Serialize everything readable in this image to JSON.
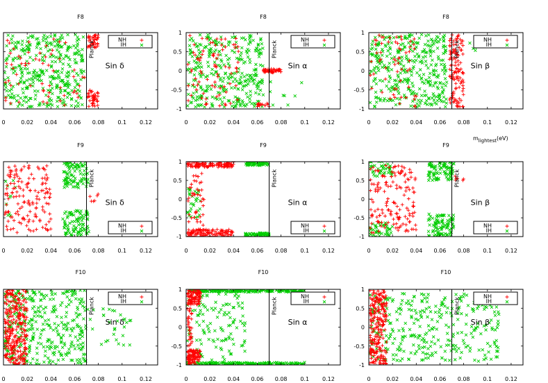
{
  "chart_data": [
    {
      "type": "scatter",
      "title": "F8",
      "annotation": "Sin δ",
      "ref_line": {
        "x": 0.07,
        "label": "Planck"
      },
      "xlim": [
        0,
        0.13
      ],
      "ylim": [
        -1,
        1
      ],
      "xticks": [
        "0",
        "0.02",
        "0.04",
        "0.06",
        "0.08",
        "0.1",
        "0.12"
      ],
      "yticks": [],
      "xlabel": "",
      "ylabel": "",
      "series": [
        {
          "name": "NH",
          "marker": "+",
          "color": "#ff0000"
        },
        {
          "name": "IH",
          "marker": "x",
          "color": "#00cc00"
        }
      ],
      "legend": "top-right",
      "nh_clusters": [
        [
          0.001,
          0.07,
          -0.9,
          0.95,
          60
        ],
        [
          0.071,
          0.08,
          0.6,
          0.95,
          40
        ],
        [
          0.071,
          0.08,
          -0.95,
          -0.5,
          40
        ]
      ],
      "ih_clusters": [
        [
          0.001,
          0.068,
          -0.95,
          0.95,
          360
        ]
      ]
    },
    {
      "type": "scatter",
      "title": "F8",
      "annotation": "Sin α",
      "ref_line": {
        "x": 0.07,
        "label": "Planck"
      },
      "xlim": [
        0,
        0.13
      ],
      "ylim": [
        -1,
        1
      ],
      "xticks": [
        "0",
        "0.02",
        "0.04",
        "0.06",
        "0.08",
        "0.1",
        "0.12"
      ],
      "yticks": [
        "1",
        "0.5",
        "0",
        "-0.5",
        "-1"
      ],
      "xlabel": "",
      "ylabel": "",
      "series": [
        {
          "name": "NH",
          "marker": "+",
          "color": "#ff0000"
        },
        {
          "name": "IH",
          "marker": "x",
          "color": "#00cc00"
        }
      ],
      "legend": "top-right",
      "nh_clusters": [
        [
          0.001,
          0.045,
          -0.95,
          0.95,
          80
        ],
        [
          0.065,
          0.08,
          -0.05,
          0.05,
          50
        ],
        [
          0.06,
          0.07,
          -0.95,
          -0.85,
          15
        ]
      ],
      "ih_clusters": [
        [
          0.001,
          0.065,
          -0.95,
          0.95,
          330
        ],
        [
          0.07,
          0.1,
          -0.9,
          -0.2,
          8
        ]
      ]
    },
    {
      "type": "scatter",
      "title": "F8",
      "annotation": "Sin β",
      "ref_line": {
        "x": 0.07,
        "label": "Planck"
      },
      "xlim": [
        0,
        0.13
      ],
      "ylim": [
        -1,
        1
      ],
      "xticks": [
        "0",
        "0.02",
        "0.04",
        "0.06",
        "0.08",
        "0.1",
        "0.12"
      ],
      "yticks": [
        "1",
        "0.5",
        "0",
        "-0.5",
        "-1"
      ],
      "xlabel": "m_lightest(eV)",
      "ylabel": "",
      "series": [
        {
          "name": "NH",
          "marker": "+",
          "color": "#ff0000"
        },
        {
          "name": "IH",
          "marker": "x",
          "color": "#00cc00"
        }
      ],
      "legend": "top-right",
      "nh_clusters": [
        [
          0.001,
          0.04,
          -0.95,
          0.95,
          60
        ],
        [
          0.068,
          0.08,
          -0.95,
          0.95,
          120
        ]
      ],
      "ih_clusters": [
        [
          0.001,
          0.066,
          -0.95,
          0.95,
          360
        ],
        [
          0.085,
          0.09,
          0.5,
          0.8,
          4
        ]
      ]
    },
    {
      "type": "scatter",
      "title": "F9",
      "annotation": "Sin δ",
      "ref_line": {
        "x": 0.07,
        "label": "Planck"
      },
      "xlim": [
        0,
        0.13
      ],
      "ylim": [
        -1,
        1
      ],
      "xticks": [
        "0",
        "0.02",
        "0.04",
        "0.06",
        "0.08",
        "0.1",
        "0.12"
      ],
      "yticks": [],
      "xlabel": "",
      "ylabel": "",
      "series": [
        {
          "name": "NH",
          "marker": "+",
          "color": "#ff0000"
        },
        {
          "name": "IH",
          "marker": "x",
          "color": "#00cc00"
        }
      ],
      "legend": "bottom-right",
      "nh_clusters": [
        [
          0.001,
          0.04,
          -0.9,
          0.9,
          150
        ],
        [
          0.07,
          0.08,
          -0.1,
          0.15,
          6
        ]
      ],
      "ih_clusters": [
        [
          0.05,
          0.072,
          0.3,
          1.0,
          90
        ],
        [
          0.05,
          0.072,
          -1.0,
          -0.3,
          90
        ],
        [
          0.001,
          0.01,
          -0.5,
          0.5,
          10
        ]
      ]
    },
    {
      "type": "scatter",
      "title": "F9",
      "annotation": "Sin α",
      "ref_line": {
        "x": 0.07,
        "label": "Planck"
      },
      "xlim": [
        0,
        0.13
      ],
      "ylim": [
        -1,
        1
      ],
      "xticks": [
        "0",
        "0.02",
        "0.04",
        "0.06",
        "0.08",
        "0.1",
        "0.12"
      ],
      "yticks": [
        "1",
        "0.5",
        "0",
        "-0.5",
        "-1"
      ],
      "xlabel": "",
      "ylabel": "",
      "series": [
        {
          "name": "NH",
          "marker": "+",
          "color": "#ff0000"
        },
        {
          "name": "IH",
          "marker": "x",
          "color": "#00cc00"
        }
      ],
      "legend": "bottom-right",
      "nh_clusters": [
        [
          0.001,
          0.04,
          0.85,
          1.0,
          110
        ],
        [
          0.001,
          0.04,
          -1.0,
          -0.8,
          110
        ],
        [
          0.001,
          0.015,
          -0.7,
          0.7,
          40
        ]
      ],
      "ih_clusters": [
        [
          0.05,
          0.07,
          0.9,
          1.0,
          70
        ],
        [
          0.05,
          0.07,
          -1.0,
          -0.9,
          70
        ],
        [
          0.001,
          0.012,
          -0.5,
          0.3,
          30
        ]
      ]
    },
    {
      "type": "scatter",
      "title": "F9",
      "annotation": "Sin β",
      "ref_line": {
        "x": 0.07,
        "label": "Planck"
      },
      "xlim": [
        0,
        0.13
      ],
      "ylim": [
        -1,
        1
      ],
      "xticks": [
        "0",
        "0.02",
        "0.04",
        "0.06",
        "0.08",
        "0.1",
        "0.12"
      ],
      "yticks": [
        "1",
        "0.5",
        "0",
        "-0.5",
        "-1"
      ],
      "xlabel": "",
      "ylabel": "",
      "series": [
        {
          "name": "NH",
          "marker": "+",
          "color": "#ff0000"
        },
        {
          "name": "IH",
          "marker": "x",
          "color": "#00cc00"
        }
      ],
      "legend": "bottom-right",
      "nh_clusters": [
        [
          0.001,
          0.04,
          -0.9,
          0.9,
          150
        ],
        [
          0.07,
          0.08,
          0.4,
          0.7,
          6
        ]
      ],
      "ih_clusters": [
        [
          0.05,
          0.072,
          0.5,
          1.0,
          90
        ],
        [
          0.05,
          0.072,
          -1.0,
          -0.4,
          90
        ],
        [
          0.001,
          0.02,
          0.6,
          1.0,
          40
        ],
        [
          0.001,
          0.02,
          -1.0,
          -0.6,
          40
        ]
      ]
    },
    {
      "type": "scatter",
      "title": "F10",
      "annotation": "Sin δ",
      "ref_line": {
        "x": 0.07,
        "label": "Planck"
      },
      "xlim": [
        0,
        0.13
      ],
      "ylim": [
        -1,
        1
      ],
      "xticks": [
        "0",
        "0.02",
        "0.04",
        "0.06",
        "0.08",
        "0.1",
        "0.12"
      ],
      "yticks": [],
      "xlabel": "",
      "ylabel": "",
      "series": [
        {
          "name": "NH",
          "marker": "+",
          "color": "#ff0000"
        },
        {
          "name": "IH",
          "marker": "x",
          "color": "#00cc00"
        }
      ],
      "legend": "top-right",
      "nh_clusters": [
        [
          0.001,
          0.02,
          -1.0,
          1.0,
          260
        ]
      ],
      "ih_clusters": [
        [
          0.001,
          0.07,
          -1.0,
          1.0,
          360
        ],
        [
          0.07,
          0.11,
          -0.5,
          0.5,
          30
        ]
      ]
    },
    {
      "type": "scatter",
      "title": "F10",
      "annotation": "Sin α",
      "ref_line": {
        "x": 0.07,
        "label": "Planck"
      },
      "xlim": [
        0,
        0.13
      ],
      "ylim": [
        -1,
        1
      ],
      "xticks": [
        "0",
        "0.02",
        "0.04",
        "0.06",
        "0.08",
        "0.1",
        "0.12"
      ],
      "yticks": [
        "1",
        "0.5",
        "0",
        "-0.5",
        "-1"
      ],
      "xlabel": "",
      "ylabel": "",
      "series": [
        {
          "name": "NH",
          "marker": "+",
          "color": "#ff0000"
        },
        {
          "name": "IH",
          "marker": "x",
          "color": "#00cc00"
        }
      ],
      "legend": "top-right",
      "nh_clusters": [
        [
          0.001,
          0.012,
          0.6,
          1.0,
          90
        ],
        [
          0.001,
          0.012,
          -1.0,
          -0.6,
          90
        ],
        [
          0.001,
          0.005,
          -0.5,
          0.5,
          30
        ]
      ],
      "ih_clusters": [
        [
          0.001,
          0.1,
          0.93,
          1.0,
          180
        ],
        [
          0.001,
          0.1,
          -1.0,
          -0.93,
          180
        ],
        [
          0.001,
          0.05,
          -0.9,
          0.9,
          120
        ]
      ]
    },
    {
      "type": "scatter",
      "title": "F10",
      "annotation": "Sin β",
      "ref_line": {
        "x": 0.07,
        "label": "Planck"
      },
      "xlim": [
        0,
        0.13
      ],
      "ylim": [
        -1,
        1
      ],
      "xticks": [
        "0",
        "0.02",
        "0.04",
        "0.06",
        "0.08",
        "0.1",
        "0.12"
      ],
      "yticks": [
        "1",
        "0.5",
        "0",
        "-0.5",
        "-1"
      ],
      "xlabel": "",
      "ylabel": "",
      "series": [
        {
          "name": "NH",
          "marker": "+",
          "color": "#ff0000"
        },
        {
          "name": "IH",
          "marker": "x",
          "color": "#00cc00"
        }
      ],
      "legend": "top-right",
      "nh_clusters": [
        [
          0.001,
          0.015,
          -1.0,
          1.0,
          220
        ]
      ],
      "ih_clusters": [
        [
          0.001,
          0.11,
          -0.9,
          0.9,
          330
        ]
      ]
    }
  ]
}
